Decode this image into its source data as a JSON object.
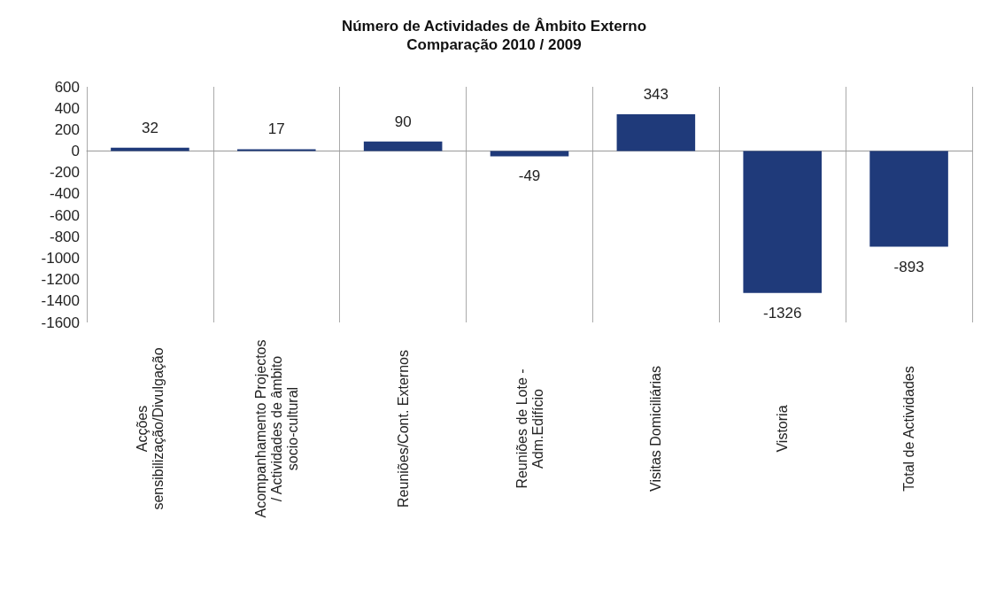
{
  "chart_data": {
    "type": "bar",
    "title": "Número de Actividades de Âmbito Externo",
    "subtitle": "Comparação 2010 / 2009",
    "categories": [
      "Acções\nsensibilização/Divulgação",
      "Acompanhamento Projectos\n/ Actividades de âmbito\nsocio-cultural",
      "Reuniões/Cont. Externos",
      "Reuniões de Lote -\nAdm.Edifício",
      "Visitas Domiciliárias",
      "Vistoria",
      "Total de Actividades"
    ],
    "values": [
      32,
      17,
      90,
      -49,
      343,
      -1326,
      -893
    ],
    "color": "#1f3a7a",
    "ylim": [
      -1600,
      600
    ],
    "yticks": [
      -1600,
      -1400,
      -1200,
      -1000,
      -800,
      -600,
      -400,
      -200,
      0,
      200,
      400,
      600
    ],
    "grid": "x",
    "data_labels": true
  }
}
